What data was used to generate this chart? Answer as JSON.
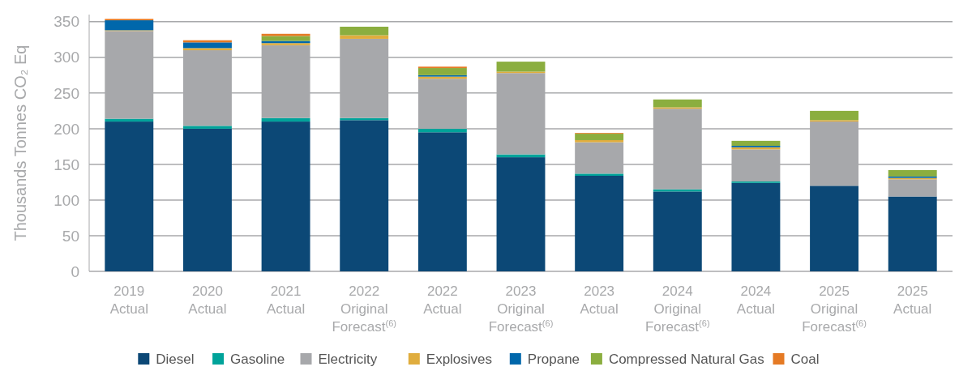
{
  "chart_data": {
    "type": "bar",
    "stacked": true,
    "ylabel": "Thousands Tonnes CO₂ Eq",
    "categories": [
      "2019 Actual",
      "2020 Actual",
      "2021 Actual",
      "2022 Original Forecast$^{(6)}$",
      "2022 Actual",
      "2023 Original Forecast$^{(6)}$",
      "2023 Actual",
      "2024 Original Forecast$^{(6)}$",
      "2024 Actual",
      "2025 Original Forecast$^{(6)}$",
      "2025 Actual"
    ],
    "series": [
      {
        "name": "Diesel",
        "color": "#0c4876",
        "values": [
          210,
          200,
          210,
          212,
          195,
          160,
          134,
          112,
          124,
          120,
          105
        ]
      },
      {
        "name": "Gasoline",
        "color": "#00a39a",
        "values": [
          4,
          4,
          5,
          3,
          5,
          4,
          3,
          3,
          2,
          0,
          0
        ]
      },
      {
        "name": "Electricity",
        "color": "#a7a8ab",
        "values": [
          123,
          106,
          102,
          111,
          70,
          114,
          44,
          113,
          45,
          90,
          24
        ]
      },
      {
        "name": "Explosives",
        "color": "#e0ad3e",
        "values": [
          1,
          3,
          3,
          5,
          3,
          2,
          3,
          2,
          3,
          2,
          2
        ]
      },
      {
        "name": "Propane",
        "color": "#0067ab",
        "values": [
          14,
          8,
          3,
          0,
          2,
          0,
          0,
          0,
          2,
          0,
          2
        ]
      },
      {
        "name": "Compressed Natural Gas",
        "color": "#8bae3f",
        "values": [
          0,
          0,
          7,
          12,
          10,
          14,
          9,
          11,
          7,
          13,
          9
        ]
      },
      {
        "name": "Coal",
        "color": "#e57a24",
        "values": [
          2,
          3,
          3,
          0,
          2,
          0,
          1,
          0,
          0,
          0,
          0
        ]
      }
    ],
    "ylim": [
      0,
      360
    ],
    "yticks": [
      0,
      50,
      100,
      150,
      200,
      250,
      300,
      350
    ],
    "grid": "y",
    "legend": "bottom"
  }
}
